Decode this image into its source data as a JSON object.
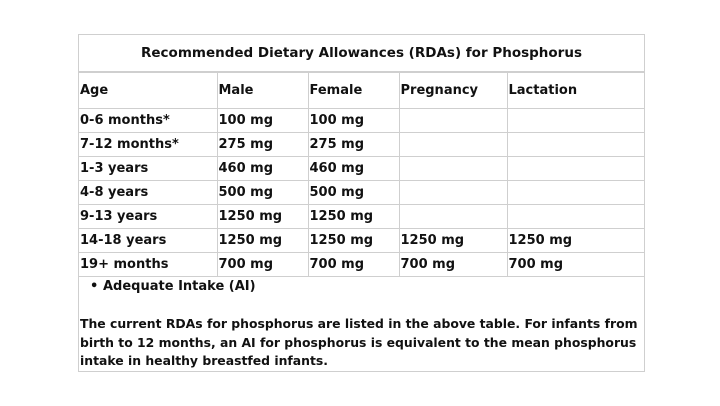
{
  "title": "Recommended Dietary Allowances (RDAs) for Phosphorus",
  "table": {
    "headers": [
      "Age",
      "Male",
      "Female",
      "Pregnancy",
      "Lactation"
    ],
    "rows": [
      [
        "0-6 months*",
        "100 mg",
        "100 mg",
        "",
        ""
      ],
      [
        "7-12 months*",
        "275 mg",
        "275 mg",
        "",
        ""
      ],
      [
        "1-3 years",
        "460 mg",
        "460 mg",
        "",
        ""
      ],
      [
        "4-8 years",
        "500 mg",
        "500 mg",
        "",
        ""
      ],
      [
        "9-13 years",
        "1250 mg",
        "1250 mg",
        "",
        ""
      ],
      [
        "14-18 years",
        "1250 mg",
        "1250 mg",
        "1250 mg",
        "1250 mg"
      ],
      [
        "19+ months",
        "700 mg",
        "700 mg",
        "700 mg",
        "700 mg"
      ]
    ]
  },
  "footnote": "Adequate Intake (AI)",
  "description": {
    "line1": "The current RDAs for phosphorus are listed in the above table. For infants from",
    "line2": "birth to 12 months, an AI for phosphorus is equivalent to the mean phosphorus",
    "line3": "intake in healthy breastfed infants."
  }
}
